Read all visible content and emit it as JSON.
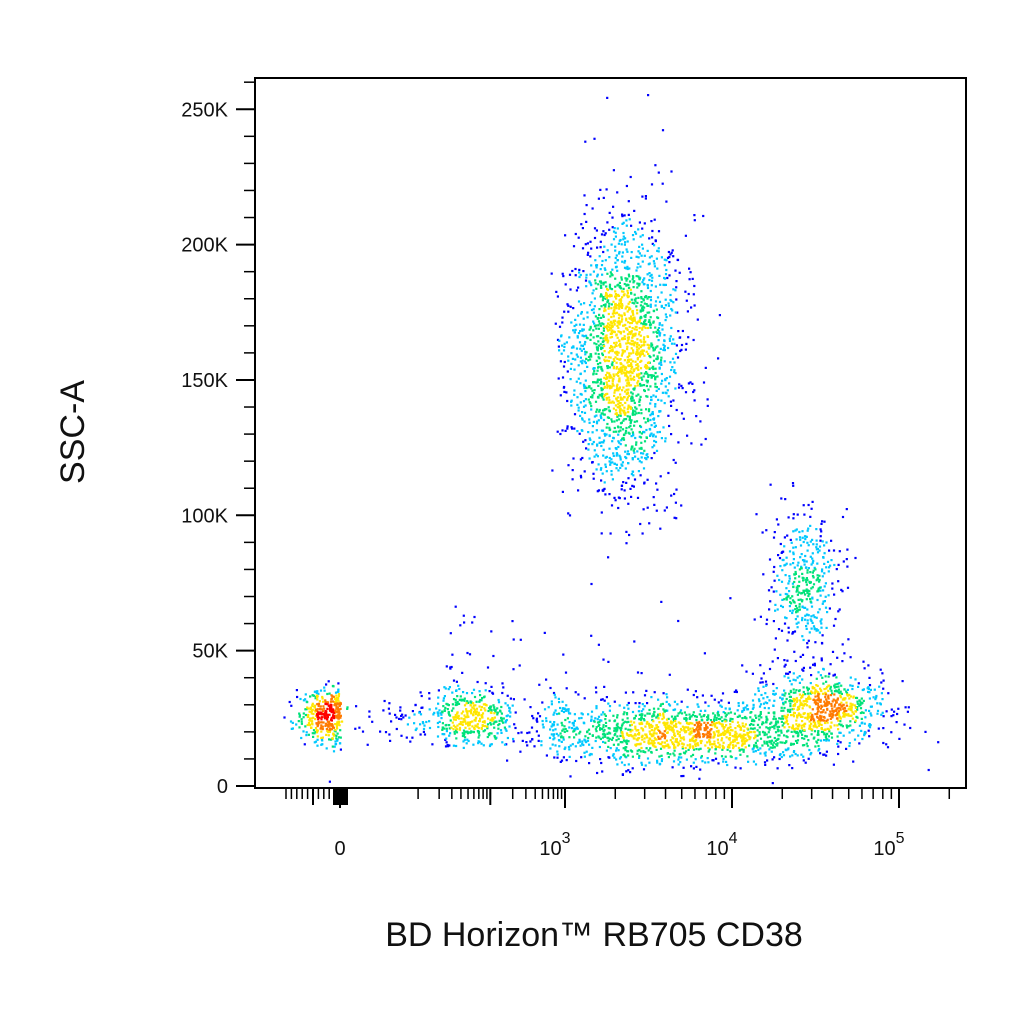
{
  "chart_data": {
    "type": "scatter",
    "subtype": "flow-cytometry-density-dot-plot",
    "title": "",
    "xlabel": "BD Horizon™ RB705 CD38",
    "ylabel": "SSC-A",
    "x_scale": "biexponential",
    "x_range": [
      -200,
      200000
    ],
    "y_range": [
      0,
      262144
    ],
    "x_ticks": [
      {
        "value": 0,
        "label": "0",
        "exp": ""
      },
      {
        "value": 1000,
        "label": "10",
        "exp": "3"
      },
      {
        "value": 10000,
        "label": "10",
        "exp": "4"
      },
      {
        "value": 100000,
        "label": "10",
        "exp": "5"
      }
    ],
    "y_ticks": [
      {
        "value": 0,
        "label": "0"
      },
      {
        "value": 50000,
        "label": "50K"
      },
      {
        "value": 100000,
        "label": "100K"
      },
      {
        "value": 150000,
        "label": "150K"
      },
      {
        "value": 200000,
        "label": "200K"
      },
      {
        "value": 250000,
        "label": "250K"
      }
    ],
    "grid": false,
    "legend": "none",
    "color_scale": [
      "#0000ff",
      "#00c8ff",
      "#00e27a",
      "#ffe600",
      "#ff7a00",
      "#ff0000"
    ],
    "populations": [
      {
        "center_x": 2200,
        "center_y": 160000,
        "spread_x_decades": 0.17,
        "spread_y": 25000,
        "relative_count": 0.34
      },
      {
        "center_x": 27000,
        "center_y": 75000,
        "spread_x_decades": 0.1,
        "spread_y": 13000,
        "relative_count": 0.07
      },
      {
        "center_x": 0,
        "center_y": 26000,
        "spread_x_decades": 0.06,
        "spread_y": 5000,
        "relative_count": 0.14
      },
      {
        "center_x": 5500,
        "center_y": 20000,
        "spread_x_decades": 0.45,
        "spread_y": 6000,
        "relative_count": 0.24
      },
      {
        "center_x": 35000,
        "center_y": 30000,
        "spread_x_decades": 0.18,
        "spread_y": 6000,
        "relative_count": 0.11
      }
    ]
  }
}
